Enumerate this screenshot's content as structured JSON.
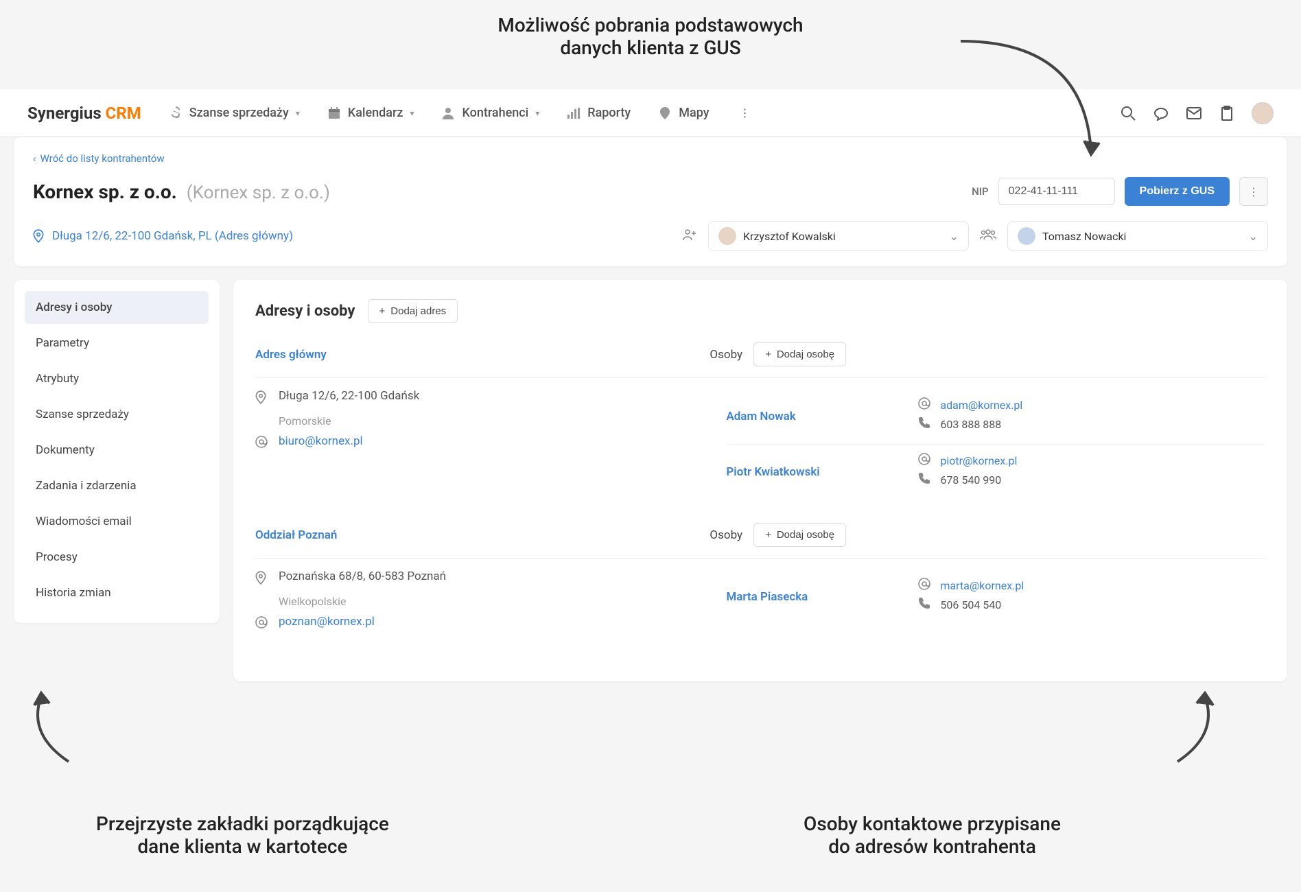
{
  "annotations": {
    "top": "Możliwość pobrania podstawowych\ndanych klienta z GUS",
    "bottom_left": "Przejrzyste zakładki porządkujące\ndane klienta w kartotece",
    "bottom_right": "Osoby kontaktowe przypisane\ndo adresów kontrahenta"
  },
  "logo": {
    "primary": "Synergius",
    "accent": "CRM"
  },
  "nav": {
    "sales": "Szanse sprzedaży",
    "calendar": "Kalendarz",
    "contractors": "Kontrahenci",
    "reports": "Raporty",
    "maps": "Mapy"
  },
  "header": {
    "back": "Wróć do listy kontrahentów",
    "company": "Kornex sp. z o.o.",
    "company_sub": "(Kornex sp. z o.o.)",
    "nip_label": "NIP",
    "nip_value": "022-41-11-111",
    "gus_button": "Pobierz z GUS",
    "address": "Długa 12/6, 22-100 Gdańsk, PL (Adres główny)",
    "owner1": "Krzysztof Kowalski",
    "owner2": "Tomasz Nowacki"
  },
  "sidebar": {
    "items": [
      "Adresy i osoby",
      "Parametry",
      "Atrybuty",
      "Szanse sprzedaży",
      "Dokumenty",
      "Zadania i zdarzenia",
      "Wiadomości email",
      "Procesy",
      "Historia zmian"
    ]
  },
  "main": {
    "title": "Adresy i osoby",
    "add_address": "Dodaj adres",
    "osoby_label": "Osoby",
    "add_person": "Dodaj osobę",
    "addresses": [
      {
        "name": "Adres główny",
        "line1": "Długa 12/6, 22-100 Gdańsk",
        "region": "Pomorskie",
        "email": "biuro@kornex.pl",
        "people": [
          {
            "name": "Adam Nowak",
            "email": "adam@kornex.pl",
            "phone": "603 888 888"
          },
          {
            "name": "Piotr Kwiatkowski",
            "email": "piotr@kornex.pl",
            "phone": "678 540 990"
          }
        ]
      },
      {
        "name": "Oddział Poznań",
        "line1": "Poznańska 68/8, 60-583 Poznań",
        "region": "Wielkopolskie",
        "email": "poznan@kornex.pl",
        "people": [
          {
            "name": "Marta Piasecka",
            "email": "marta@kornex.pl",
            "phone": "506 504 540"
          }
        ]
      }
    ]
  },
  "colors": {
    "primary": "#3b82d4",
    "accent": "#ff7a00",
    "bg": "#f5f5f5",
    "text": "#333333",
    "muted": "#999999",
    "border": "#e0e0e0"
  }
}
